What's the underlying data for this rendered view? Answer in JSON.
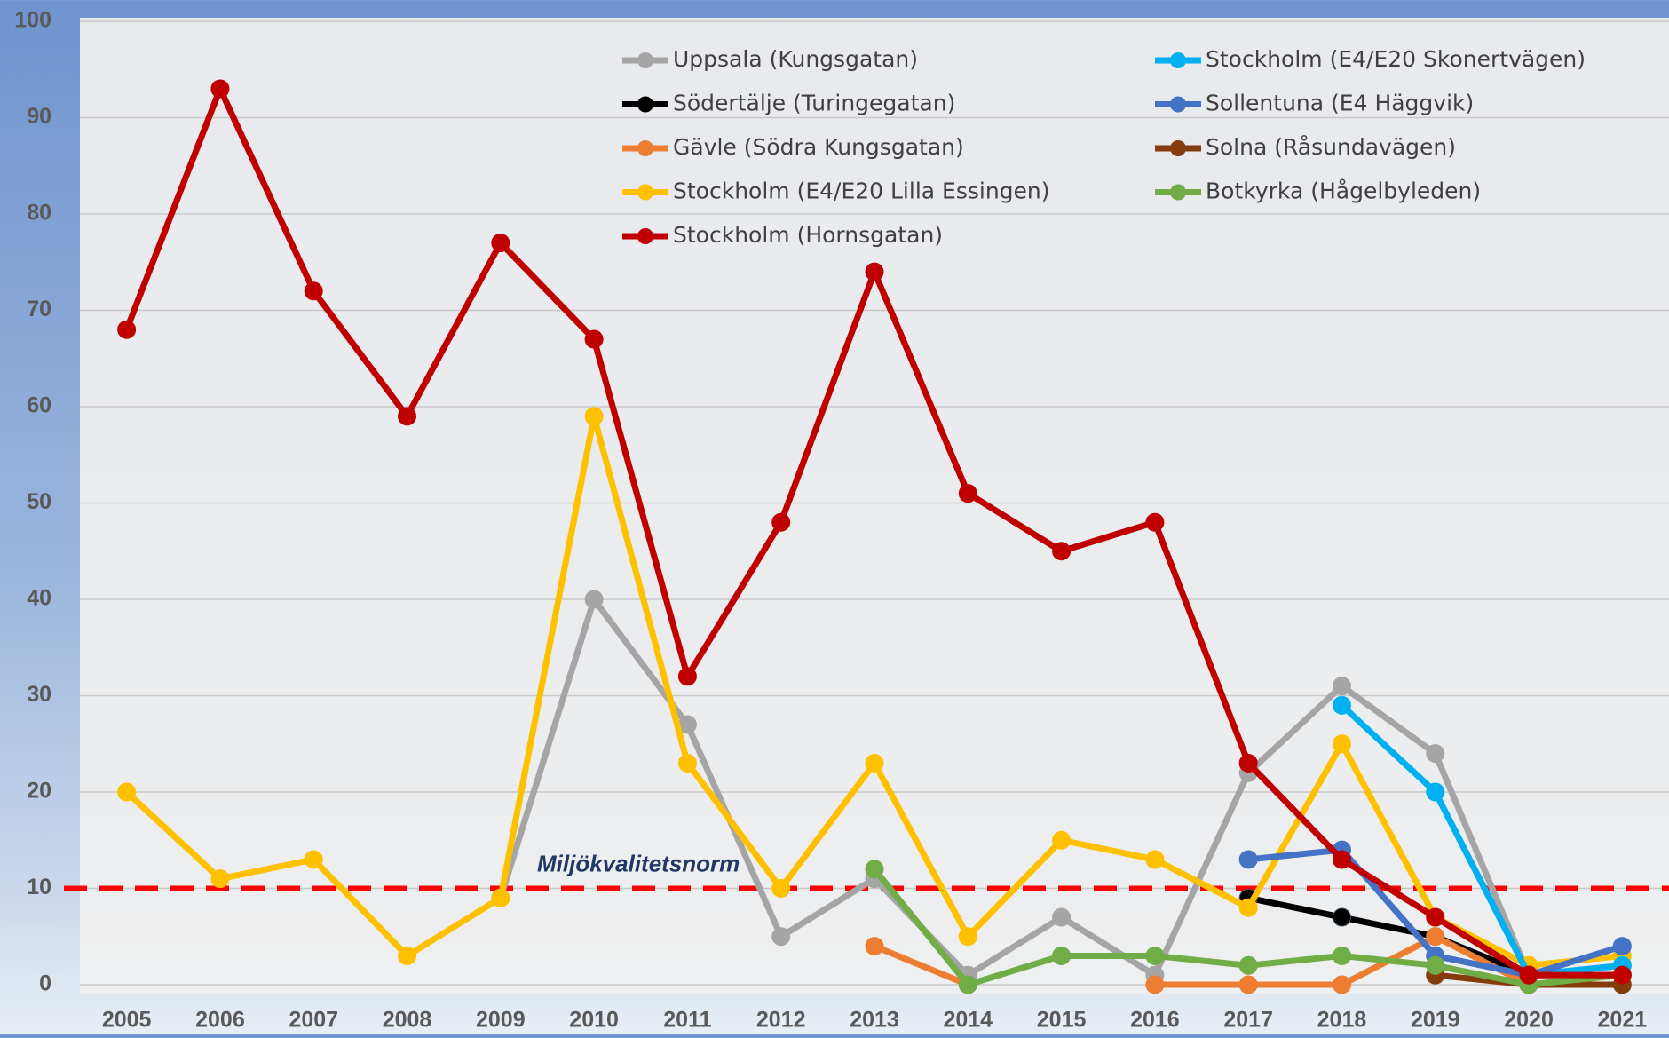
{
  "chart_data": {
    "type": "line",
    "categories": [
      "2005",
      "2006",
      "2007",
      "2008",
      "2009",
      "2010",
      "2011",
      "2012",
      "2013",
      "2014",
      "2015",
      "2016",
      "2017",
      "2018",
      "2019",
      "2020",
      "2021"
    ],
    "ylim": [
      0,
      100
    ],
    "yticks": [
      0,
      10,
      20,
      30,
      40,
      50,
      60,
      70,
      80,
      90,
      100
    ],
    "grid": true,
    "reference_line": {
      "value": 10,
      "label": "Miljökvalitetsnorm",
      "color": "#ff0000"
    },
    "series": [
      {
        "name": "Uppsala (Kungsgatan)",
        "color": "#a5a5a5",
        "values": [
          null,
          null,
          null,
          null,
          9,
          40,
          27,
          5,
          11,
          1,
          7,
          1,
          22,
          31,
          24,
          1,
          2
        ]
      },
      {
        "name": "Södertälje (Turingegatan)",
        "color": "#000000",
        "values": [
          null,
          null,
          null,
          null,
          null,
          null,
          null,
          null,
          null,
          null,
          null,
          null,
          9,
          7,
          5,
          1,
          1
        ]
      },
      {
        "name": "Gävle (Södra Kungsgatan)",
        "color": "#ed7d31",
        "values": [
          null,
          null,
          null,
          null,
          null,
          null,
          null,
          null,
          4,
          0,
          null,
          0,
          0,
          0,
          5,
          0,
          1
        ]
      },
      {
        "name": "Stockholm (E4/E20 Lilla Essingen)",
        "color": "#ffc000",
        "values": [
          20,
          11,
          13,
          3,
          9,
          59,
          23,
          10,
          23,
          5,
          15,
          13,
          8,
          25,
          7,
          2,
          3
        ]
      },
      {
        "name": "Stockholm (Hornsgatan)",
        "color": "#c00000",
        "values": [
          68,
          93,
          72,
          59,
          77,
          67,
          32,
          48,
          74,
          51,
          45,
          48,
          23,
          13,
          7,
          1,
          1
        ]
      },
      {
        "name": "Stockholm (E4/E20 Skonertvägen)",
        "color": "#00b0f0",
        "values": [
          null,
          null,
          null,
          null,
          null,
          null,
          null,
          null,
          null,
          null,
          null,
          null,
          null,
          29,
          20,
          1,
          2
        ]
      },
      {
        "name": "Sollentuna (E4 Häggvik)",
        "color": "#4472c4",
        "values": [
          null,
          null,
          null,
          null,
          null,
          null,
          null,
          null,
          null,
          null,
          null,
          null,
          13,
          14,
          3,
          1,
          4
        ]
      },
      {
        "name": "Solna (Råsundavägen)",
        "color": "#843c0c",
        "values": [
          null,
          null,
          null,
          null,
          null,
          null,
          null,
          null,
          null,
          null,
          null,
          null,
          null,
          null,
          1,
          0,
          0
        ]
      },
      {
        "name": "Botkyrka (Hågelbyleden)",
        "color": "#70ad47",
        "values": [
          null,
          null,
          null,
          null,
          null,
          null,
          null,
          null,
          12,
          0,
          3,
          3,
          2,
          3,
          2,
          0,
          1
        ]
      }
    ]
  }
}
